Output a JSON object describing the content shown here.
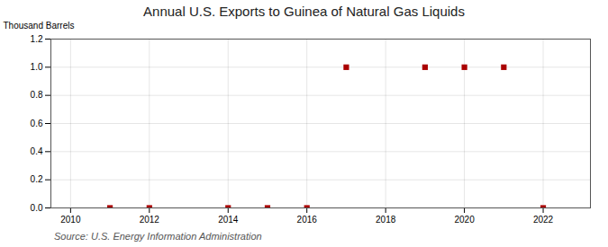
{
  "chart_data": {
    "type": "scatter",
    "title": "Annual U.S. Exports to Guinea of Natural Gas Liquids",
    "ylabel": "Thousand Barrels",
    "annotations": [
      "Source: U.S. Energy Information Administration"
    ],
    "x": [
      2011,
      2012,
      2014,
      2015,
      2016,
      2017,
      2019,
      2020,
      2021,
      2022
    ],
    "values": [
      0.0,
      0.0,
      0.0,
      0.0,
      0.0,
      1.0,
      1.0,
      1.0,
      1.0,
      0.0
    ],
    "color": "#aa0000",
    "marker": "square",
    "xlim": [
      2009.5,
      2023.2
    ],
    "xticks": [
      2010,
      2012,
      2014,
      2016,
      2018,
      2020,
      2022
    ],
    "ylim": [
      0.0,
      1.2
    ],
    "yticks": [
      {
        "value": 0,
        "label": "0.0"
      },
      0.2,
      0.4,
      0.6,
      0.8,
      {
        "value": 1,
        "label": "1.0"
      },
      1.2
    ],
    "grid": true
  }
}
